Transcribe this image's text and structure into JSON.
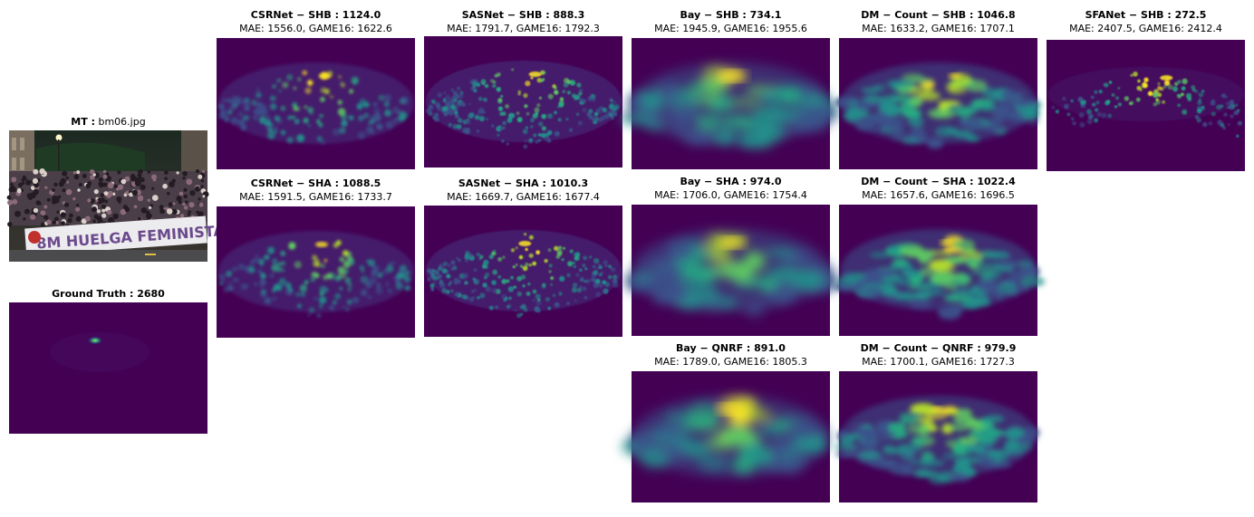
{
  "photo": {
    "title_bold": "MT :",
    "title_rest": " bm06.jpg",
    "banner_text": "8M HUELGA FEMINISTA"
  },
  "ground_truth": {
    "title_bold": "Ground Truth : 2680"
  },
  "panels": [
    {
      "id": "csrnet-shb",
      "title": "CSRNet − SHB : 1124.0",
      "metrics": "MAE: 1556.0, GAME16: 1622.6",
      "style": "crisp"
    },
    {
      "id": "sasnet-shb",
      "title": "SASNet − SHB : 888.3",
      "metrics": "MAE: 1791.7, GAME16: 1792.3",
      "style": "dots"
    },
    {
      "id": "bay-shb",
      "title": "Bay − SHB : 734.1",
      "metrics": "MAE: 1945.9, GAME16: 1955.6",
      "style": "blur"
    },
    {
      "id": "dmcount-shb",
      "title": "DM − Count − SHB : 1046.8",
      "metrics": "MAE: 1633.2, GAME16: 1707.1",
      "style": "blobs"
    },
    {
      "id": "sfanet-shb",
      "title": "SFANet − SHB : 272.5",
      "metrics": "MAE: 2407.5, GAME16: 2412.4",
      "style": "sparse"
    },
    {
      "id": "csrnet-sha",
      "title": "CSRNet − SHA : 1088.5",
      "metrics": "MAE: 1591.5, GAME16: 1733.7",
      "style": "crisp"
    },
    {
      "id": "sasnet-sha",
      "title": "SASNet − SHA : 1010.3",
      "metrics": "MAE: 1669.7, GAME16: 1677.4",
      "style": "dots"
    },
    {
      "id": "bay-sha",
      "title": "Bay − SHA : 974.0",
      "metrics": "MAE: 1706.0, GAME16: 1754.4",
      "style": "blur"
    },
    {
      "id": "dmcount-sha",
      "title": "DM − Count − SHA : 1022.4",
      "metrics": "MAE: 1657.6, GAME16: 1696.5",
      "style": "blobs"
    },
    {
      "id": "bay-qnrf",
      "title": "Bay − QNRF : 891.0",
      "metrics": "MAE: 1789.0, GAME16: 1805.3",
      "style": "blur"
    },
    {
      "id": "dmcount-qnrf",
      "title": "DM − Count − QNRF : 979.9",
      "metrics": "MAE: 1700.1, GAME16: 1727.3",
      "style": "blobs"
    }
  ],
  "colors": {
    "viridis_dark": "#440154",
    "viridis_mid": "#21918c",
    "viridis_light": "#5ec962",
    "viridis_top": "#fde725"
  }
}
